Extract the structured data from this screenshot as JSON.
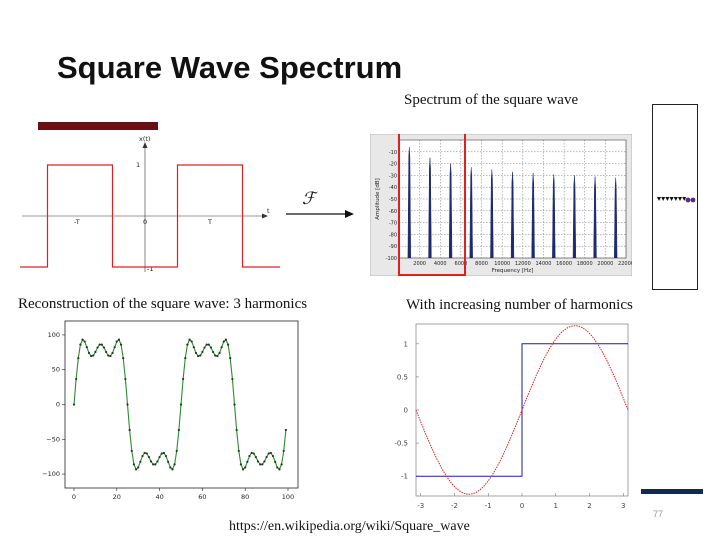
{
  "slide": {
    "title": "Square Wave Spectrum",
    "spectrum_caption": "Spectrum of the square wave",
    "reconstruction_caption": "Reconstruction of the square wave: 3 harmonics",
    "increasing_caption": "With increasing number of harmonics",
    "fourier_symbol": "ℱ",
    "source_url": "https://en.wikipedia.org/wiki/Square_wave",
    "page_number": "77",
    "colors": {
      "accent_maroon": "#6a0f12",
      "accent_navy": "#0f2a55",
      "red": "#e02020",
      "green": "#2e8b2e",
      "blue": "#1a1aa0"
    }
  },
  "chart_data": [
    {
      "type": "line",
      "title": "",
      "ylabel": "x(t)",
      "xlabel": "t",
      "y_ticks": [
        "1",
        "-1"
      ],
      "x_ticks": [
        "-T",
        "0",
        "T"
      ],
      "series": [
        {
          "x": [
            -3.0,
            -1.75,
            -1.75,
            -1.25,
            -1.25,
            -0.75,
            -0.75,
            -0.25,
            -0.25,
            0.25,
            0.25,
            0.75,
            0.75,
            1.25,
            1.25,
            1.75,
            1.75
          ],
          "values": [
            -1,
            -1,
            1,
            1,
            -1,
            -1,
            1,
            1,
            -1,
            -1,
            1,
            1,
            -1,
            -1,
            1,
            1,
            1
          ]
        }
      ],
      "ylim": [
        -1,
        1
      ]
    },
    {
      "type": "bar",
      "title": "",
      "xlabel": "Frequency [Hz]",
      "ylabel": "Amplitude [dB]",
      "x_ticks": [
        "2000",
        "4000",
        "6000",
        "8000",
        "10000",
        "12000",
        "14000",
        "16000",
        "18000",
        "20000",
        "22000"
      ],
      "y_ticks": [
        "-10",
        "-20",
        "-30",
        "-40",
        "-50",
        "-60",
        "-70",
        "-80",
        "-90",
        "-100"
      ],
      "xlim": [
        0,
        22000
      ],
      "ylim": [
        -100,
        0
      ],
      "series": [
        {
          "x": [
            1000,
            3000,
            5000,
            7000,
            9000,
            11000,
            13000,
            15000,
            17000,
            19000,
            21000
          ],
          "values": [
            -6,
            -15,
            -20,
            -23,
            -25,
            -27,
            -28,
            -29,
            -30,
            -31,
            -32
          ]
        }
      ]
    },
    {
      "type": "line",
      "title": "",
      "xlabel": "",
      "ylabel": "",
      "x_ticks": [
        "0",
        "20",
        "40",
        "60",
        "80",
        "100"
      ],
      "y_ticks": [
        "100",
        "50",
        "0",
        "−50",
        "−100"
      ],
      "xlim": [
        0,
        100
      ],
      "ylim": [
        -120,
        120
      ],
      "series": [
        {
          "name": "",
          "samples": 100,
          "period": 50,
          "harmonics": [
            1,
            3,
            5
          ],
          "amplitude": 100
        }
      ]
    },
    {
      "type": "line",
      "title": "",
      "x_ticks": [
        "-3",
        "-2",
        "-1",
        "0",
        "1",
        "2",
        "3"
      ],
      "y_ticks": [
        "1",
        "0.5",
        "0",
        "-0.5",
        "-1"
      ],
      "xlim": [
        -3.14,
        3.14
      ],
      "ylim": [
        -1.3,
        1.3
      ],
      "series": [
        {
          "name": "",
          "x": [
            -3.14,
            0,
            0,
            3.14
          ],
          "values": [
            -1,
            -1,
            1,
            1
          ]
        },
        {
          "name": "",
          "function": "4/pi*sin(x)",
          "x_range": [
            -3.14,
            3.14
          ]
        }
      ]
    }
  ]
}
